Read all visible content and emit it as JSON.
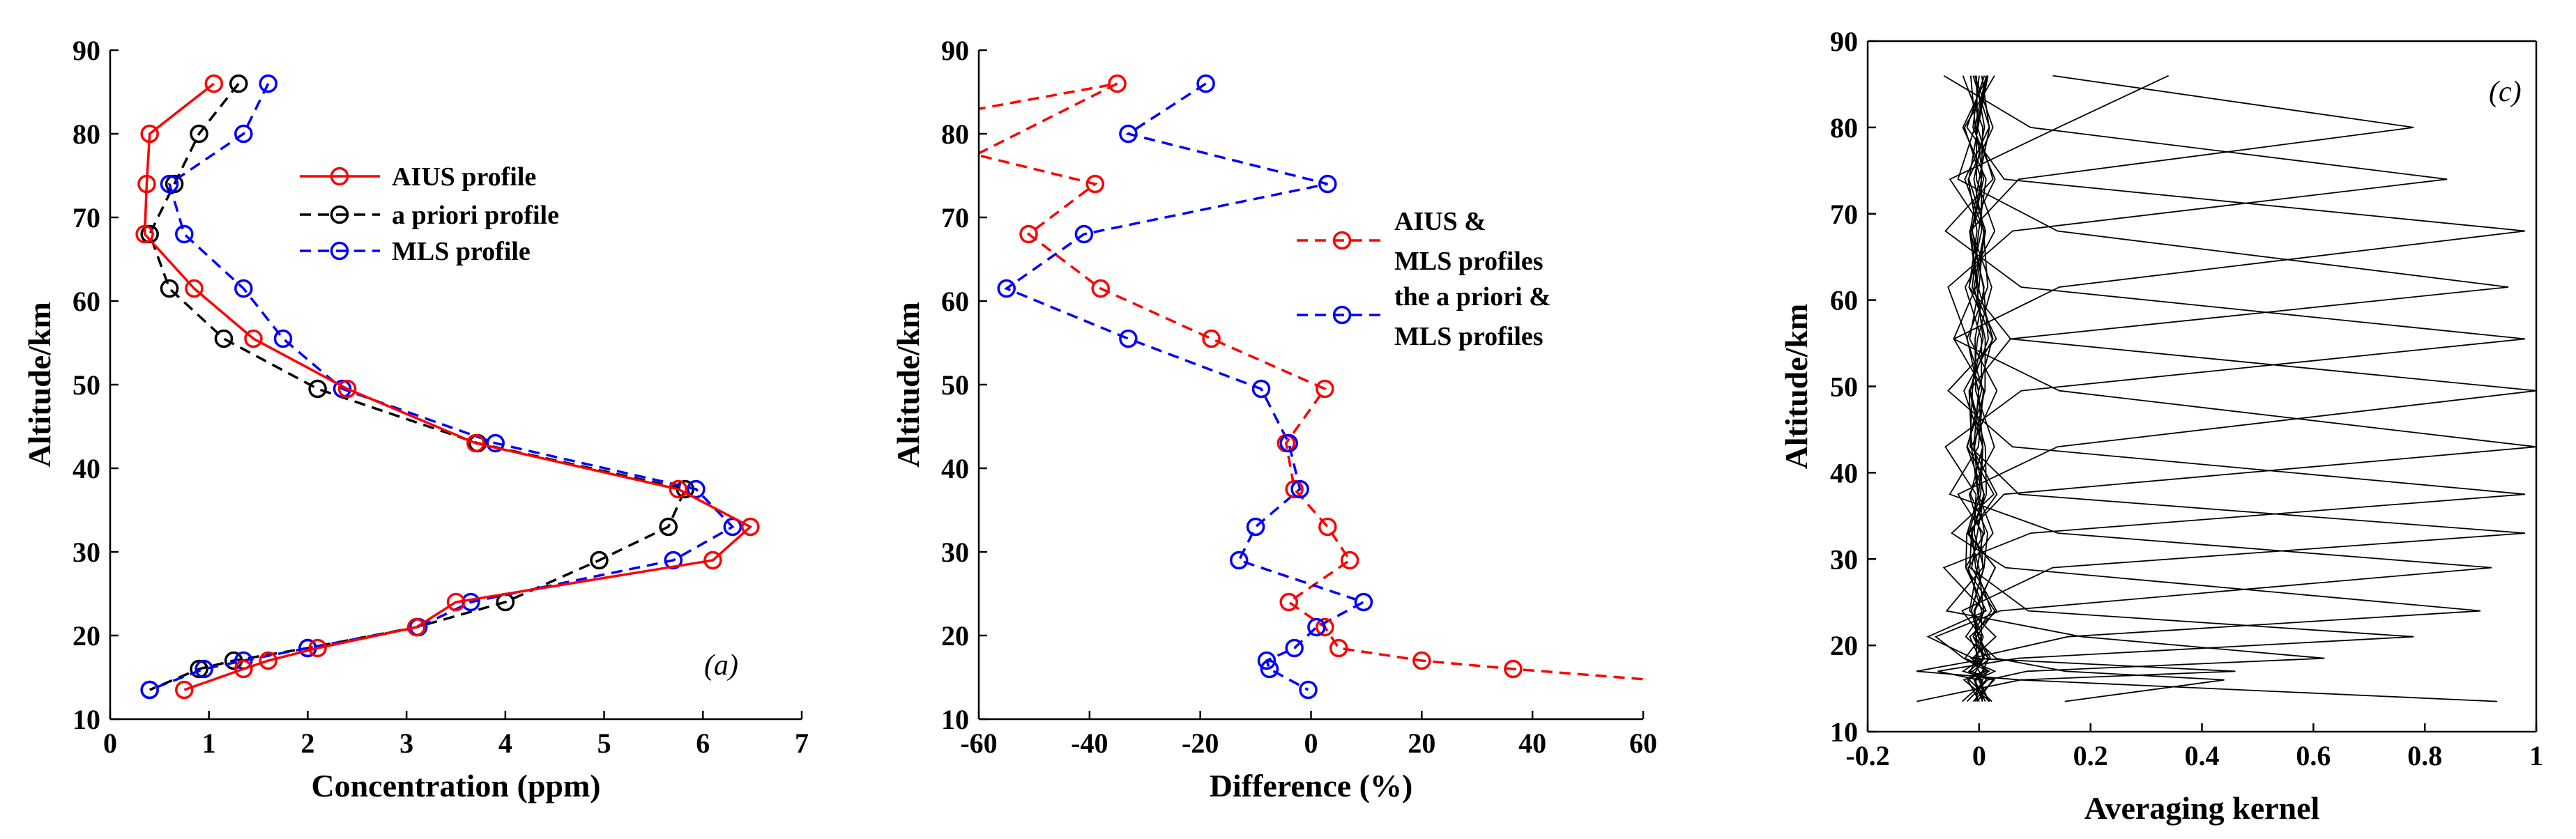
{
  "chart_data": [
    {
      "type": "line",
      "panel_label": "(a)",
      "xlabel": "Concentration (ppm)",
      "ylabel": "Altitude/km",
      "xlim": [
        0,
        7
      ],
      "ylim": [
        10,
        90
      ],
      "xticks": [
        "0",
        "1",
        "2",
        "3",
        "4",
        "5",
        "6",
        "7"
      ],
      "yticks": [
        "10",
        "20",
        "30",
        "40",
        "50",
        "60",
        "70",
        "80",
        "90"
      ],
      "legend_position": "upper-middle",
      "series": [
        {
          "name": "AIUS profile",
          "color": "#ff0000",
          "dash": "solid",
          "points": [
            [
              1.05,
              86
            ],
            [
              0.4,
              80
            ],
            [
              0.37,
              74
            ],
            [
              0.35,
              68
            ],
            [
              0.85,
              61.5
            ],
            [
              1.45,
              55.5
            ],
            [
              2.4,
              49.5
            ],
            [
              3.7,
              43
            ],
            [
              5.75,
              37.5
            ],
            [
              6.48,
              33
            ],
            [
              6.1,
              29
            ],
            [
              3.5,
              24
            ],
            [
              3.1,
              21
            ],
            [
              2.1,
              18.5
            ],
            [
              1.6,
              17
            ],
            [
              1.35,
              16
            ],
            [
              0.75,
              13.5
            ]
          ]
        },
        {
          "name": "a priori profile",
          "color": "#000000",
          "dash": "dashed",
          "points": [
            [
              1.3,
              86
            ],
            [
              0.9,
              80
            ],
            [
              0.65,
              74
            ],
            [
              0.4,
              68
            ],
            [
              0.6,
              61.5
            ],
            [
              1.15,
              55.5
            ],
            [
              2.1,
              49.5
            ],
            [
              3.72,
              43
            ],
            [
              5.82,
              37.5
            ],
            [
              5.65,
              33
            ],
            [
              4.95,
              29
            ],
            [
              4.0,
              24
            ],
            [
              3.1,
              21
            ],
            [
              2.0,
              18.5
            ],
            [
              1.25,
              17
            ],
            [
              0.9,
              16
            ],
            [
              0.4,
              13.5
            ]
          ]
        },
        {
          "name": "MLS profile",
          "color": "#0000ff",
          "dash": "dashed",
          "points": [
            [
              1.6,
              86
            ],
            [
              1.35,
              80
            ],
            [
              0.6,
              74
            ],
            [
              0.75,
              68
            ],
            [
              1.35,
              61.5
            ],
            [
              1.75,
              55.5
            ],
            [
              2.35,
              49.5
            ],
            [
              3.9,
              43
            ],
            [
              5.93,
              37.5
            ],
            [
              6.3,
              33
            ],
            [
              5.7,
              29
            ],
            [
              3.65,
              24
            ],
            [
              3.12,
              21
            ],
            [
              2.0,
              18.5
            ],
            [
              1.35,
              17
            ],
            [
              0.95,
              16
            ],
            [
              0.4,
              13.5
            ]
          ]
        }
      ]
    },
    {
      "type": "line",
      "xlabel": "Difference (%)",
      "ylabel": "Altitude/km",
      "xlim": [
        -60,
        60
      ],
      "ylim": [
        10,
        90
      ],
      "xticks": [
        "-60",
        "-40",
        "-20",
        "0",
        "20",
        "40",
        "60"
      ],
      "yticks": [
        "10",
        "20",
        "30",
        "40",
        "50",
        "60",
        "70",
        "80",
        "90"
      ],
      "legend_position": "right",
      "series": [
        {
          "name_lines": [
            "AIUS &",
            "MLS profiles"
          ],
          "color": "#ff0000",
          "dash": "dashed",
          "markers": [
            [
              -35,
              86
            ],
            [
              -39,
              74
            ],
            [
              -51,
              68
            ],
            [
              -38,
              61.5
            ],
            [
              -18,
              55.5
            ],
            [
              2.5,
              49.5
            ],
            [
              -4.5,
              43
            ],
            [
              -3,
              37.5
            ],
            [
              3,
              33
            ],
            [
              7,
              29
            ],
            [
              -4,
              24
            ],
            [
              2.5,
              21
            ],
            [
              5,
              18.5
            ],
            [
              20,
              17
            ],
            [
              36.5,
              16
            ]
          ],
          "line_points": [
            [
              -64,
              82.5
            ],
            [
              -35,
              86
            ],
            [
              -60.5,
              77.5
            ],
            [
              -39,
              74
            ],
            [
              -51,
              68
            ],
            [
              -38,
              61.5
            ],
            [
              -18,
              55.5
            ],
            [
              2.5,
              49.5
            ],
            [
              -4.5,
              43
            ],
            [
              -3,
              37.5
            ],
            [
              3,
              33
            ],
            [
              7,
              29
            ],
            [
              -4,
              24
            ],
            [
              2.5,
              21
            ],
            [
              5,
              18.5
            ],
            [
              20,
              17
            ],
            [
              36.5,
              16
            ],
            [
              61.5,
              14.7
            ]
          ]
        },
        {
          "name_lines": [
            "the a priori &",
            "MLS profiles"
          ],
          "color": "#0000ff",
          "dash": "dashed",
          "markers": [
            [
              -19,
              86
            ],
            [
              -33,
              80
            ],
            [
              3,
              74
            ],
            [
              -41,
              68
            ],
            [
              -55,
              61.5
            ],
            [
              -33,
              55.5
            ],
            [
              -9,
              49.5
            ],
            [
              -4,
              43
            ],
            [
              -2,
              37.5
            ],
            [
              -10,
              33
            ],
            [
              -13,
              29
            ],
            [
              9.5,
              24
            ],
            [
              1,
              21
            ],
            [
              -3,
              18.5
            ],
            [
              -8,
              17
            ],
            [
              -7.5,
              16
            ],
            [
              -0.5,
              13.5
            ]
          ],
          "line_points": [
            [
              -19,
              86
            ],
            [
              -33,
              80
            ],
            [
              3,
              74
            ],
            [
              -41,
              68
            ],
            [
              -55,
              61.5
            ],
            [
              -33,
              55.5
            ],
            [
              -9,
              49.5
            ],
            [
              -4,
              43
            ],
            [
              -2,
              37.5
            ],
            [
              -10,
              33
            ],
            [
              -13,
              29
            ],
            [
              9.5,
              24
            ],
            [
              1,
              21
            ],
            [
              -3,
              18.5
            ],
            [
              -8,
              17
            ],
            [
              -7.5,
              16
            ],
            [
              -0.5,
              13.5
            ]
          ]
        }
      ]
    },
    {
      "type": "line",
      "panel_label": "(c)",
      "xlabel": "Averaging kernel",
      "ylabel": "Altitude/km",
      "xlim": [
        -0.2,
        1
      ],
      "ylim": [
        10,
        90
      ],
      "xticks": [
        "-0.2",
        "0",
        "0.2",
        "0.4",
        "0.6",
        "0.8",
        "1"
      ],
      "yticks": [
        "10",
        "20",
        "30",
        "40",
        "50",
        "60",
        "70",
        "80",
        "90"
      ],
      "grid_altitudes": [
        86,
        80,
        74,
        68,
        61.5,
        55.5,
        49.5,
        43,
        37.5,
        33,
        29,
        24,
        21,
        18.5,
        17,
        16,
        13.5
      ],
      "kernel_peaks": [
        0.34,
        0.78,
        0.84,
        0.98,
        0.95,
        0.98,
        1.0,
        1.0,
        0.98,
        0.98,
        0.92,
        0.9,
        0.78,
        0.62,
        0.46,
        0.44,
        0.93
      ],
      "series_color": "#000000"
    }
  ]
}
